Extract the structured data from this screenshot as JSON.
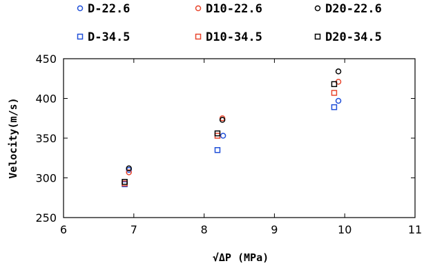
{
  "chart_data": {
    "type": "scatter",
    "xlabel": "√ΔP (MPa)",
    "ylabel": "Velocity(m/s)",
    "xlim": [
      6,
      11
    ],
    "ylim": [
      250,
      450
    ],
    "xticks": [
      "6",
      "7",
      "8",
      "9",
      "10",
      "11"
    ],
    "yticks": [
      "250",
      "300",
      "350",
      "400",
      "450"
    ],
    "legend_position": "top",
    "grid": false,
    "series": [
      {
        "name": "D-22.6",
        "marker": "circle",
        "color": "#1f4fd8",
        "points": [
          [
            6.93,
            310
          ],
          [
            8.27,
            353
          ],
          [
            9.91,
            397
          ]
        ]
      },
      {
        "name": "D10-22.6",
        "marker": "circle",
        "color": "#e8452c",
        "points": [
          [
            6.93,
            307
          ],
          [
            8.26,
            375
          ],
          [
            9.91,
            421
          ]
        ]
      },
      {
        "name": "D20-22.6",
        "marker": "circle",
        "color": "#000000",
        "points": [
          [
            6.93,
            312
          ],
          [
            8.26,
            373
          ],
          [
            9.91,
            434
          ]
        ]
      },
      {
        "name": "D-34.5",
        "marker": "square",
        "color": "#1f4fd8",
        "points": [
          [
            6.87,
            292
          ],
          [
            8.19,
            335
          ],
          [
            9.85,
            389
          ]
        ]
      },
      {
        "name": "D10-34.5",
        "marker": "square",
        "color": "#e8452c",
        "points": [
          [
            6.87,
            293
          ],
          [
            8.19,
            353
          ],
          [
            9.85,
            407
          ]
        ]
      },
      {
        "name": "D20-34.5",
        "marker": "square",
        "color": "#000000",
        "points": [
          [
            6.87,
            295
          ],
          [
            8.19,
            356
          ],
          [
            9.85,
            418
          ]
        ]
      }
    ]
  }
}
